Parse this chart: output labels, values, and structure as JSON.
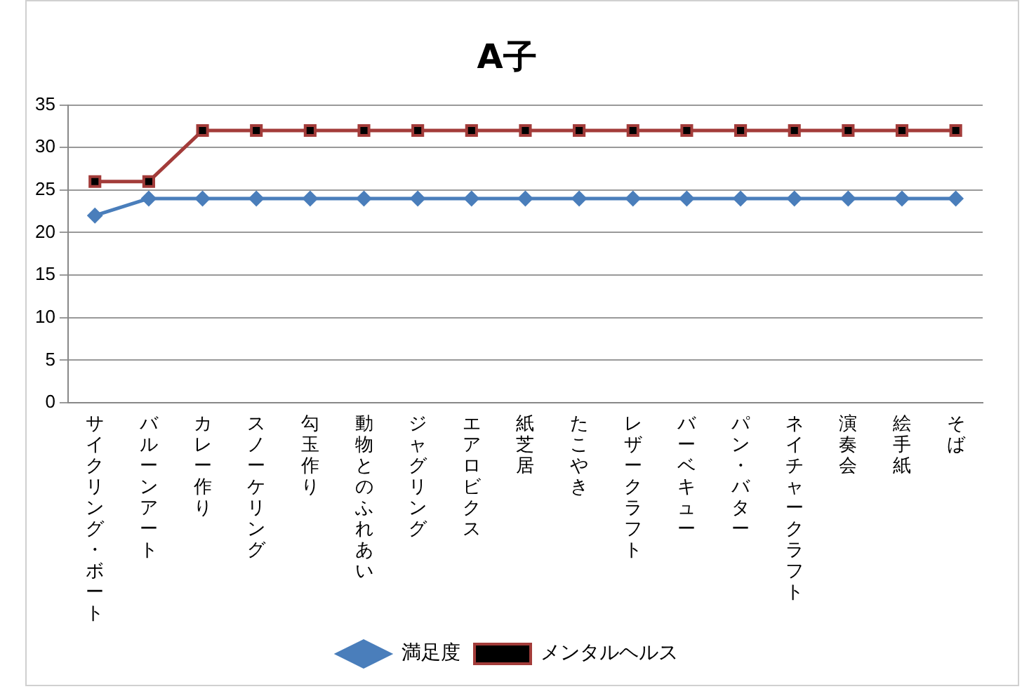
{
  "chart_data": {
    "type": "line",
    "title": "A子",
    "categories": [
      "サイクリング・ボート",
      "バルーンアート",
      "カレー作り",
      "スノーケリング",
      "勾玉作り",
      "動物とのふれあい",
      "ジャグリング",
      "エアロビクス",
      "紙芝居",
      "たこやき",
      "レザークラフト",
      "バーベキュー",
      "パン・バター",
      "ネイチャークラフト",
      "演奏会",
      "絵手紙",
      "そば"
    ],
    "series": [
      {
        "name": "満足度",
        "color": "#4a7ebb",
        "marker": "diamond",
        "values": [
          22,
          24,
          24,
          24,
          24,
          24,
          24,
          24,
          24,
          24,
          24,
          24,
          24,
          24,
          24,
          24,
          24
        ]
      },
      {
        "name": "メンタルヘルス",
        "color": "#a33c3a",
        "marker": "square",
        "values": [
          26,
          26,
          32,
          32,
          32,
          32,
          32,
          32,
          32,
          32,
          32,
          32,
          32,
          32,
          32,
          32,
          32
        ]
      }
    ],
    "ylim": [
      0,
      35
    ],
    "yticks": [
      0,
      5,
      10,
      15,
      20,
      25,
      30,
      35
    ],
    "grid": "y",
    "legend": "bottom",
    "line_style": "solid"
  }
}
